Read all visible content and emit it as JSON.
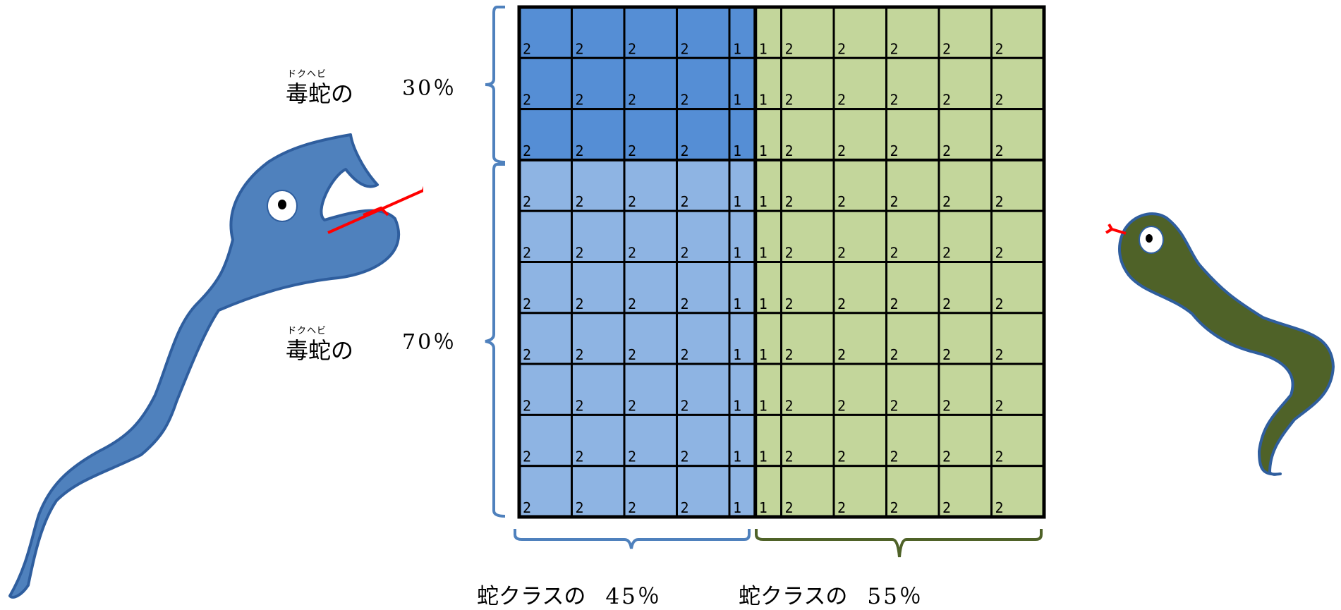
{
  "row_labels": [
    {
      "ruby": "ドクヘビ",
      "main": "毒蛇の",
      "percent": "30％"
    },
    {
      "ruby": "ドクヘビ",
      "main": "毒蛇の",
      "percent": "70％"
    }
  ],
  "column_labels": [
    {
      "text": "蛇クラスの",
      "percent": "45％"
    },
    {
      "text": "蛇クラスの",
      "percent": "55％"
    }
  ],
  "grid": {
    "rows": 10,
    "top_rows": 3,
    "left_columns": [
      2,
      2,
      2,
      2,
      1
    ],
    "right_columns": [
      1,
      2,
      2,
      2,
      2,
      2
    ],
    "cell_text": [
      "2",
      "2",
      "2",
      "2",
      "1",
      "1",
      "2",
      "2",
      "2",
      "2",
      "2"
    ]
  },
  "colors": {
    "venom_blue_dark": "#558ed5",
    "venom_blue_light": "#8eb4e3",
    "class_green": "#c3d69b",
    "blue_snake": "#4f81bd",
    "green_snake": "#4f6228",
    "tongue": "#ff0000",
    "left_brace": "#4f81bd",
    "right_brace": "#4f6228"
  },
  "icons": {
    "left_figure": "blue-snake-icon",
    "right_figure": "green-snake-icon"
  }
}
